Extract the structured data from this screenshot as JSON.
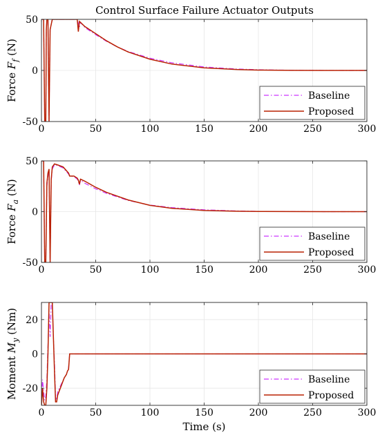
{
  "title": "Control Surface Failure Actuator Outputs",
  "colors": {
    "baseline": "#cc33ff",
    "proposed": "#b82000"
  },
  "chart_data": [
    {
      "type": "line",
      "ylabel_main": "Force ",
      "ylabel_sym": "F",
      "ylabel_sub": "f",
      "ylabel_unit": " (N)",
      "xlim": [
        0,
        300
      ],
      "ylim": [
        -50,
        50
      ],
      "xticks": [
        0,
        50,
        100,
        150,
        200,
        250,
        300
      ],
      "yticks": [
        -50,
        0,
        50
      ],
      "grid": true,
      "legend_placement": "bottom-right",
      "series": [
        {
          "name": "Baseline",
          "style": "dash-dot",
          "x": [
            0,
            2,
            3,
            4,
            4.5,
            5,
            6,
            7,
            8,
            10,
            30,
            33,
            35,
            36,
            40,
            50,
            60,
            70,
            80,
            100,
            120,
            150,
            180,
            200,
            230,
            260,
            300
          ],
          "y": [
            50,
            50,
            -50,
            -50,
            40,
            50,
            50,
            -50,
            40,
            50,
            50,
            50,
            42,
            47,
            42,
            35,
            28.5,
            23,
            18.5,
            12,
            7.5,
            3.4,
            1.4,
            0.7,
            0.2,
            0.05,
            0
          ]
        },
        {
          "name": "Proposed",
          "style": "solid",
          "x": [
            0,
            2,
            3,
            4,
            4.5,
            5,
            6,
            7,
            8,
            10,
            30,
            33,
            34,
            35,
            40,
            50,
            60,
            70,
            80,
            100,
            120,
            150,
            180,
            200,
            230,
            260,
            300
          ],
          "y": [
            50,
            50,
            -50,
            -50,
            40,
            50,
            50,
            -50,
            40,
            50,
            50,
            50,
            38,
            48,
            43,
            36,
            29,
            23,
            18,
            11,
            6.3,
            2.5,
            0.9,
            0.35,
            0.1,
            0.02,
            0
          ]
        }
      ]
    },
    {
      "type": "line",
      "ylabel_main": "Force ",
      "ylabel_sym": "F",
      "ylabel_sub": "a",
      "ylabel_unit": " (N)",
      "xlim": [
        0,
        300
      ],
      "ylim": [
        -50,
        50
      ],
      "xticks": [
        0,
        50,
        100,
        150,
        200,
        250,
        300
      ],
      "yticks": [
        -50,
        0,
        50
      ],
      "grid": true,
      "legend_placement": "bottom-right",
      "series": [
        {
          "name": "Baseline",
          "style": "dash-dot",
          "x": [
            0,
            2,
            3,
            4,
            5,
            6,
            7,
            8,
            9,
            10,
            12,
            15,
            20,
            25,
            26,
            30,
            33,
            34,
            35,
            36,
            40,
            50,
            60,
            80,
            100,
            120,
            150,
            180,
            200,
            230,
            260,
            300
          ],
          "y": [
            50,
            50,
            -50,
            -50,
            25,
            35,
            40,
            -50,
            30,
            42,
            46,
            45.5,
            43,
            37,
            35,
            34.5,
            32,
            30,
            26,
            31,
            28,
            22.5,
            18,
            11,
            6.5,
            4,
            1.8,
            0.7,
            0.3,
            0.1,
            0.02,
            0
          ]
        },
        {
          "name": "Proposed",
          "style": "solid",
          "x": [
            0,
            2,
            3,
            4,
            5,
            6,
            7,
            8,
            9,
            10,
            12,
            15,
            20,
            25,
            26,
            30,
            33,
            34,
            35,
            36,
            40,
            50,
            60,
            80,
            100,
            120,
            150,
            180,
            200,
            230,
            260,
            300
          ],
          "y": [
            50,
            50,
            -50,
            -50,
            28,
            38,
            42,
            -50,
            32,
            44,
            47,
            46,
            44,
            38,
            35,
            35,
            33,
            31,
            27,
            32,
            30,
            24,
            19,
            11.5,
            6.2,
            3.3,
            1.2,
            0.4,
            0.15,
            0.05,
            0.01,
            0
          ]
        }
      ]
    },
    {
      "type": "line",
      "ylabel_main": "Moment ",
      "ylabel_sym": "M",
      "ylabel_sub": "y",
      "ylabel_unit": " (Nm)",
      "xlabel": "Time (s)",
      "xlim": [
        0,
        300
      ],
      "ylim": [
        -30,
        30
      ],
      "xticks": [
        0,
        50,
        100,
        150,
        200,
        250,
        300
      ],
      "yticks": [
        -20,
        0,
        20
      ],
      "grid": true,
      "legend_placement": "bottom-right",
      "series": [
        {
          "name": "Baseline",
          "style": "dash-dot",
          "x": [
            0,
            1,
            2,
            3,
            4,
            5,
            6,
            7,
            8,
            9,
            10,
            11,
            12,
            13,
            14,
            15,
            18,
            21,
            23,
            24,
            25,
            26,
            30,
            100,
            200,
            300
          ],
          "y": [
            -25,
            -15,
            -22,
            -27,
            -25,
            -15,
            5,
            25,
            10,
            30,
            30,
            10,
            -5,
            -25,
            -27,
            -22,
            -18,
            -14,
            -12,
            -10,
            -8,
            0,
            0,
            0,
            0,
            0
          ]
        },
        {
          "name": "Proposed",
          "style": "solid",
          "x": [
            0,
            1,
            2,
            3,
            4,
            5,
            6,
            7,
            8,
            9,
            10,
            11,
            12,
            13,
            14,
            15,
            18,
            21,
            23,
            24,
            25,
            26,
            30,
            100,
            200,
            300
          ],
          "y": [
            -30,
            -20,
            -28,
            -30,
            -30,
            -20,
            0,
            30,
            30,
            30,
            30,
            10,
            -10,
            -28,
            -28,
            -24,
            -19,
            -14,
            -12,
            -10,
            -9,
            0,
            0,
            0,
            0,
            0
          ]
        }
      ]
    }
  ],
  "panels_layout_note": ""
}
